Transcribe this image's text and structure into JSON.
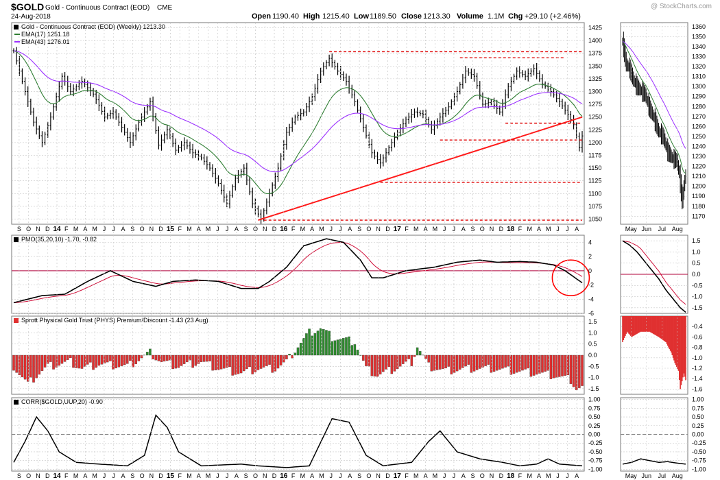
{
  "header": {
    "symbol": "$GOLD",
    "name": "Gold - Continuous Contract (EOD)",
    "exchange": "CME",
    "date": "24-Aug-2018",
    "watermark": "@ StockCharts.com",
    "quote": {
      "open_label": "Open",
      "open": "1190.40",
      "high_label": "High",
      "high": "1215.40",
      "low_label": "Low",
      "low": "1189.50",
      "close_label": "Close",
      "close": "1213.30",
      "volume_label": "Volume",
      "volume": "1.1M",
      "chg_label": "Chg",
      "chg": "+29.10 (+2.46%)"
    }
  },
  "colors": {
    "price": "#000000",
    "ema17": "#2e7d32",
    "ema43": "#9b30ff",
    "signal": "#d0103a",
    "dashed": "#e00000",
    "trend": "#ff1a1a",
    "pos_bar": "#2e8b2e",
    "neg_bar": "#e03030",
    "grid": "#c8c8c8",
    "zero_line": "#b0003a",
    "circle": "#ff0000"
  },
  "chart_data": [
    {
      "type": "ohlc",
      "panel": "price-weekly",
      "title": "Gold - Continuous Contract (EOD) (Weekly) 1213.30",
      "legend": [
        {
          "name": "EMA(17) 1251.18",
          "color": "#2e7d32"
        },
        {
          "name": "EMA(43) 1276.01",
          "color": "#9b30ff"
        }
      ],
      "y_ticks": [
        1050,
        1075,
        1100,
        1125,
        1150,
        1175,
        1200,
        1225,
        1250,
        1275,
        1300,
        1325,
        1350,
        1375,
        1400,
        1425
      ],
      "ylim": [
        1040,
        1435
      ],
      "x_labels": [
        "S",
        "O",
        "N",
        "D",
        "14",
        "F",
        "M",
        "A",
        "M",
        "J",
        "J",
        "A",
        "S",
        "O",
        "N",
        "D",
        "15",
        "F",
        "M",
        "A",
        "M",
        "J",
        "J",
        "A",
        "S",
        "O",
        "N",
        "D",
        "16",
        "F",
        "M",
        "A",
        "M",
        "J",
        "J",
        "A",
        "S",
        "O",
        "N",
        "D",
        "17",
        "F",
        "M",
        "A",
        "M",
        "J",
        "J",
        "A",
        "S",
        "O",
        "N",
        "D",
        "18",
        "F",
        "M",
        "A",
        "M",
        "J",
        "J",
        "A"
      ],
      "close_keypoints": [
        [
          0,
          1380
        ],
        [
          3,
          1320
        ],
        [
          7,
          1240
        ],
        [
          10,
          1200
        ],
        [
          13,
          1250
        ],
        [
          17,
          1330
        ],
        [
          20,
          1300
        ],
        [
          24,
          1320
        ],
        [
          28,
          1295
        ],
        [
          32,
          1250
        ],
        [
          35,
          1260
        ],
        [
          38,
          1230
        ],
        [
          41,
          1200
        ],
        [
          44,
          1240
        ],
        [
          48,
          1280
        ],
        [
          51,
          1195
        ],
        [
          54,
          1225
        ],
        [
          57,
          1185
        ],
        [
          60,
          1200
        ],
        [
          63,
          1180
        ],
        [
          66,
          1170
        ],
        [
          69,
          1150
        ],
        [
          72,
          1120
        ],
        [
          75,
          1080
        ],
        [
          78,
          1130
        ],
        [
          81,
          1150
        ],
        [
          84,
          1080
        ],
        [
          87,
          1050
        ],
        [
          90,
          1100
        ],
        [
          93,
          1150
        ],
        [
          96,
          1220
        ],
        [
          99,
          1250
        ],
        [
          102,
          1260
        ],
        [
          105,
          1290
        ],
        [
          108,
          1340
        ],
        [
          111,
          1365
        ],
        [
          114,
          1340
        ],
        [
          117,
          1320
        ],
        [
          120,
          1280
        ],
        [
          123,
          1230
        ],
        [
          126,
          1180
        ],
        [
          129,
          1160
        ],
        [
          132,
          1190
        ],
        [
          135,
          1220
        ],
        [
          138,
          1245
        ],
        [
          141,
          1260
        ],
        [
          144,
          1255
        ],
        [
          147,
          1225
        ],
        [
          150,
          1250
        ],
        [
          153,
          1270
        ],
        [
          156,
          1300
        ],
        [
          159,
          1340
        ],
        [
          162,
          1330
        ],
        [
          165,
          1275
        ],
        [
          168,
          1280
        ],
        [
          171,
          1260
        ],
        [
          174,
          1310
        ],
        [
          177,
          1340
        ],
        [
          180,
          1330
        ],
        [
          183,
          1345
        ],
        [
          186,
          1315
        ],
        [
          189,
          1300
        ],
        [
          192,
          1280
        ],
        [
          195,
          1255
        ],
        [
          197,
          1235
        ],
        [
          199,
          1190
        ],
        [
          200,
          1213
        ]
      ],
      "ema17_last": 1251.18,
      "ema43_last": 1276.01,
      "trendline": [
        [
          86,
          1048
        ],
        [
          200,
          1250
        ]
      ],
      "support_resistance": [
        {
          "level": 1378,
          "from": 111,
          "to": 200
        },
        {
          "level": 1366,
          "from": 157,
          "to": 194
        },
        {
          "level": 1238,
          "from": 173,
          "to": 200
        },
        {
          "level": 1205,
          "from": 150,
          "to": 200
        },
        {
          "level": 1122,
          "from": 129,
          "to": 200
        },
        {
          "level": 1048,
          "from": 88,
          "to": 200
        }
      ]
    },
    {
      "type": "ohlc",
      "panel": "price-daily",
      "y_ticks": [
        1170,
        1180,
        1190,
        1200,
        1210,
        1220,
        1230,
        1240,
        1250,
        1260,
        1270,
        1280,
        1290,
        1300,
        1310,
        1320,
        1330,
        1340,
        1350,
        1360
      ],
      "ylim": [
        1162,
        1364
      ],
      "x_labels": [
        "May",
        "Jun",
        "Jul",
        "Aug"
      ],
      "close_keypoints": [
        [
          0,
          1345
        ],
        [
          4,
          1322
        ],
        [
          8,
          1318
        ],
        [
          12,
          1306
        ],
        [
          16,
          1300
        ],
        [
          20,
          1296
        ],
        [
          25,
          1292
        ],
        [
          30,
          1278
        ],
        [
          35,
          1268
        ],
        [
          40,
          1255
        ],
        [
          45,
          1250
        ],
        [
          50,
          1235
        ],
        [
          55,
          1228
        ],
        [
          60,
          1226
        ],
        [
          63,
          1212
        ],
        [
          66,
          1185
        ],
        [
          68,
          1200
        ],
        [
          70,
          1213
        ]
      ]
    },
    {
      "type": "line",
      "panel": "pmo-weekly",
      "title": "PMO(35,20,10) -1.70, -0.82",
      "series": [
        {
          "name": "PMO(35,20,10) -1.70",
          "color": "#000000"
        },
        {
          "name": "-0.82",
          "color": "#d0103a"
        }
      ],
      "y_ticks": [
        -6,
        -4,
        -2,
        0,
        2,
        4
      ],
      "ylim": [
        -6,
        5
      ],
      "pmo_keypoints": [
        [
          0,
          -4.5
        ],
        [
          10,
          -3.5
        ],
        [
          18,
          -3.3
        ],
        [
          26,
          -1.5
        ],
        [
          34,
          0
        ],
        [
          42,
          -1.5
        ],
        [
          50,
          -2.2
        ],
        [
          56,
          -1.5
        ],
        [
          64,
          -1.3
        ],
        [
          72,
          -1.5
        ],
        [
          80,
          -2.5
        ],
        [
          86,
          -2.5
        ],
        [
          90,
          -1.5
        ],
        [
          96,
          0.5
        ],
        [
          102,
          3.5
        ],
        [
          110,
          4.5
        ],
        [
          116,
          4.0
        ],
        [
          122,
          1.5
        ],
        [
          126,
          -1.0
        ],
        [
          130,
          -1.0
        ],
        [
          138,
          0
        ],
        [
          148,
          0.5
        ],
        [
          156,
          1.2
        ],
        [
          164,
          1.5
        ],
        [
          170,
          1.2
        ],
        [
          178,
          1.3
        ],
        [
          184,
          1.2
        ],
        [
          190,
          0.8
        ],
        [
          194,
          0
        ],
        [
          200,
          -1.7
        ]
      ],
      "signal_last": -0.82
    },
    {
      "type": "line",
      "panel": "pmo-daily",
      "y_ticks": [
        -1.5,
        -1.0,
        -0.5,
        0,
        0.5,
        1.0,
        1.5
      ],
      "ylim": [
        -1.75,
        1.75
      ],
      "pmo_keypoints": [
        [
          0,
          1.5
        ],
        [
          8,
          1.3
        ],
        [
          16,
          1.0
        ],
        [
          24,
          0.6
        ],
        [
          32,
          0.2
        ],
        [
          40,
          -0.2
        ],
        [
          48,
          -0.7
        ],
        [
          56,
          -1.1
        ],
        [
          64,
          -1.5
        ],
        [
          70,
          -1.7
        ]
      ]
    },
    {
      "type": "bar",
      "panel": "phys-weekly",
      "title": "Sprott Physical Gold Trust (PHYS) Premium/Discount -1.43 (23 Aug)",
      "y_ticks": [
        -1.5,
        -1.0,
        -0.5,
        0,
        0.5,
        1.0,
        1.5
      ],
      "ylim": [
        -1.75,
        1.75
      ],
      "value_keypoints": [
        [
          0,
          -0.5
        ],
        [
          5,
          -1.3
        ],
        [
          8,
          -0.9
        ],
        [
          12,
          -0.5
        ],
        [
          20,
          -0.3
        ],
        [
          24,
          -0.6
        ],
        [
          30,
          -0.4
        ],
        [
          40,
          -0.5
        ],
        [
          48,
          0.1
        ],
        [
          52,
          -0.3
        ],
        [
          58,
          -0.5
        ],
        [
          66,
          -0.3
        ],
        [
          72,
          -0.6
        ],
        [
          80,
          -0.8
        ],
        [
          86,
          -0.6
        ],
        [
          92,
          -0.6
        ],
        [
          96,
          -0.3
        ],
        [
          100,
          0.4
        ],
        [
          104,
          1.0
        ],
        [
          108,
          1.2
        ],
        [
          112,
          0.8
        ],
        [
          116,
          0.7
        ],
        [
          120,
          0.6
        ],
        [
          124,
          -0.6
        ],
        [
          128,
          -0.9
        ],
        [
          132,
          -0.7
        ],
        [
          136,
          -0.5
        ],
        [
          140,
          -0.3
        ],
        [
          142,
          0.4
        ],
        [
          146,
          -0.5
        ],
        [
          152,
          -0.7
        ],
        [
          160,
          -0.6
        ],
        [
          168,
          -0.6
        ],
        [
          176,
          -0.7
        ],
        [
          184,
          -0.8
        ],
        [
          190,
          -0.9
        ],
        [
          196,
          -1.1
        ],
        [
          198,
          -1.5
        ],
        [
          200,
          -1.43
        ]
      ]
    },
    {
      "type": "bar",
      "panel": "phys-daily",
      "y_ticks": [
        -1.6,
        -1.4,
        -1.2,
        -1.0,
        -0.8,
        -0.6,
        -0.4
      ],
      "ylim": [
        -1.7,
        -0.2
      ],
      "value_keypoints": [
        [
          0,
          -0.7
        ],
        [
          5,
          -0.5
        ],
        [
          10,
          -0.6
        ],
        [
          20,
          -0.5
        ],
        [
          30,
          -0.5
        ],
        [
          40,
          -0.6
        ],
        [
          48,
          -0.7
        ],
        [
          54,
          -0.9
        ],
        [
          58,
          -1.1
        ],
        [
          62,
          -1.25
        ],
        [
          64,
          -1.6
        ],
        [
          68,
          -1.3
        ],
        [
          70,
          -1.43
        ]
      ]
    },
    {
      "type": "line",
      "panel": "corr-weekly",
      "title": "CORR($GOLD,UUP,20) -0.90",
      "y_ticks": [
        -1.0,
        -0.75,
        -0.5,
        -0.25,
        0,
        0.25,
        0.5,
        0.75,
        1.0
      ],
      "ylim": [
        -1.05,
        1.05
      ],
      "value_keypoints": [
        [
          0,
          -0.8
        ],
        [
          4,
          -0.2
        ],
        [
          8,
          0.5
        ],
        [
          12,
          0.1
        ],
        [
          16,
          -0.5
        ],
        [
          22,
          -0.8
        ],
        [
          30,
          -0.85
        ],
        [
          40,
          -0.9
        ],
        [
          46,
          -0.6
        ],
        [
          50,
          0.55
        ],
        [
          54,
          0.2
        ],
        [
          58,
          -0.5
        ],
        [
          66,
          -0.9
        ],
        [
          80,
          -0.85
        ],
        [
          86,
          -0.9
        ],
        [
          96,
          -0.95
        ],
        [
          104,
          -0.9
        ],
        [
          112,
          0.45
        ],
        [
          118,
          0.35
        ],
        [
          124,
          -0.6
        ],
        [
          130,
          -0.9
        ],
        [
          140,
          -0.8
        ],
        [
          146,
          -0.2
        ],
        [
          150,
          0.1
        ],
        [
          156,
          -0.5
        ],
        [
          164,
          -0.7
        ],
        [
          172,
          -0.8
        ],
        [
          178,
          -0.9
        ],
        [
          184,
          -0.85
        ],
        [
          188,
          -0.7
        ],
        [
          192,
          -0.85
        ],
        [
          200,
          -0.9
        ]
      ]
    },
    {
      "type": "line",
      "panel": "corr-daily",
      "y_ticks": [
        -1.0,
        -0.75,
        -0.5,
        -0.25,
        0,
        0.25,
        0.5,
        0.75,
        1.0
      ],
      "ylim": [
        -1.05,
        1.05
      ],
      "value_keypoints": [
        [
          0,
          -0.85
        ],
        [
          10,
          -0.8
        ],
        [
          20,
          -0.7
        ],
        [
          30,
          -0.75
        ],
        [
          40,
          -0.8
        ],
        [
          50,
          -0.78
        ],
        [
          60,
          -0.82
        ],
        [
          70,
          -0.85
        ]
      ]
    }
  ]
}
